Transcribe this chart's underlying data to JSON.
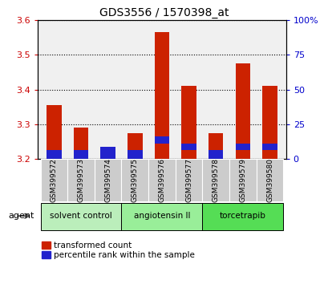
{
  "title": "GDS3556 / 1570398_at",
  "samples": [
    "GSM399572",
    "GSM399573",
    "GSM399574",
    "GSM399575",
    "GSM399576",
    "GSM399577",
    "GSM399578",
    "GSM399579",
    "GSM399580"
  ],
  "transformed_count": [
    3.355,
    3.29,
    3.225,
    3.275,
    3.565,
    3.41,
    3.275,
    3.475,
    3.41
  ],
  "percentile_bottom": [
    3.2,
    3.2,
    3.2,
    3.2,
    3.245,
    3.225,
    3.2,
    3.225,
    3.225
  ],
  "percentile_top": [
    3.225,
    3.225,
    3.235,
    3.225,
    3.265,
    3.245,
    3.225,
    3.245,
    3.245
  ],
  "ylim": [
    3.2,
    3.6
  ],
  "yticks_left": [
    3.2,
    3.3,
    3.4,
    3.5,
    3.6
  ],
  "yticks_right": [
    0,
    25,
    50,
    75,
    100
  ],
  "base": 3.2,
  "groups": [
    {
      "label": "solvent control",
      "indices": [
        0,
        1,
        2
      ],
      "color": "#bbeebb"
    },
    {
      "label": "angiotensin II",
      "indices": [
        3,
        4,
        5
      ],
      "color": "#99ee99"
    },
    {
      "label": "torcetrapib",
      "indices": [
        6,
        7,
        8
      ],
      "color": "#55dd55"
    }
  ],
  "bar_color_red": "#cc2200",
  "bar_color_blue": "#2222cc",
  "bar_width": 0.55,
  "tick_color_left": "#cc0000",
  "tick_color_right": "#0000cc",
  "legend_red_label": "transformed count",
  "legend_blue_label": "percentile rank within the sample",
  "agent_label": "agent",
  "plot_bg_color": "#f0f0f0",
  "grid_color": "#000000",
  "sample_box_color": "#cccccc"
}
